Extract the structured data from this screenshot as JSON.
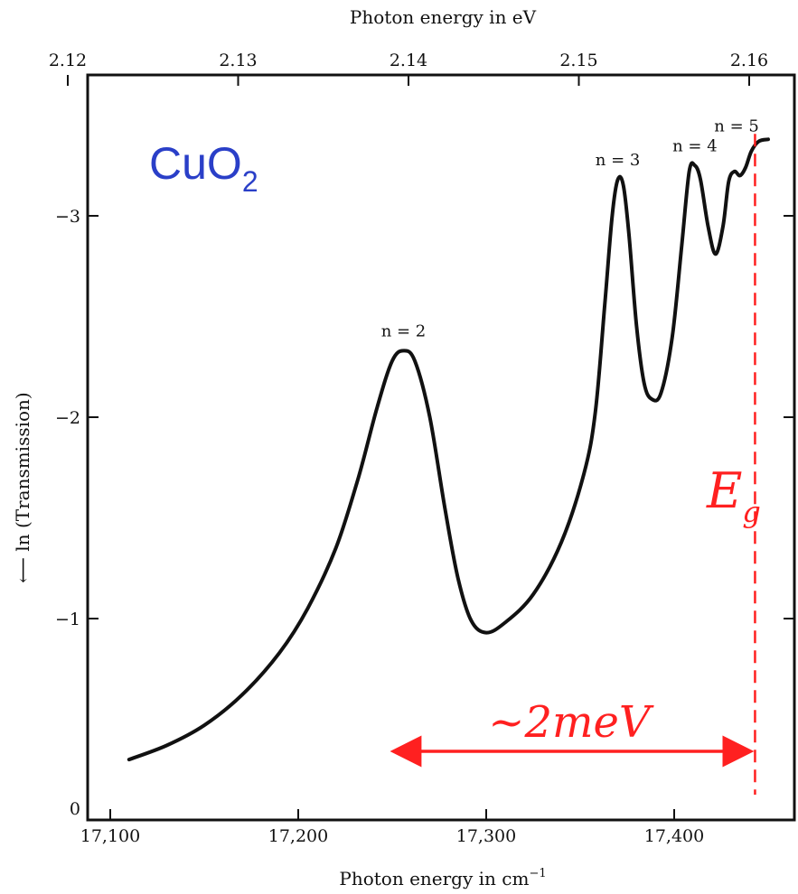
{
  "chart_data": {
    "type": "line",
    "xlabel": "Photon energy in cm",
    "xlabel_sup": "−1",
    "x2label": "Photon energy in eV",
    "ylabel": "⟵ ln (Transmission)",
    "xlim": [
      17100,
      17450
    ],
    "ylim": [
      0,
      3.7
    ],
    "x_ticks": [
      {
        "value": 17100,
        "label": "17,100"
      },
      {
        "value": 17200,
        "label": "17,200"
      },
      {
        "value": 17300,
        "label": "17,300"
      },
      {
        "value": 17400,
        "label": "17,400"
      }
    ],
    "x2_ticks": [
      {
        "value": 2.12,
        "label": "2.12"
      },
      {
        "value": 2.13,
        "label": "2.13"
      },
      {
        "value": 2.14,
        "label": "2.14"
      },
      {
        "value": 2.15,
        "label": "2.15"
      },
      {
        "value": 2.16,
        "label": "2.16"
      }
    ],
    "y_ticks": [
      {
        "value": 0,
        "label": "0"
      },
      {
        "value": 1,
        "label": "−1"
      },
      {
        "value": 2,
        "label": "−2"
      },
      {
        "value": 3,
        "label": "−3"
      }
    ],
    "series": [
      {
        "points": [
          [
            17110,
            0.3
          ],
          [
            17130,
            0.37
          ],
          [
            17150,
            0.47
          ],
          [
            17170,
            0.62
          ],
          [
            17190,
            0.83
          ],
          [
            17205,
            1.05
          ],
          [
            17220,
            1.35
          ],
          [
            17232,
            1.7
          ],
          [
            17242,
            2.05
          ],
          [
            17250,
            2.28
          ],
          [
            17256,
            2.33
          ],
          [
            17262,
            2.28
          ],
          [
            17270,
            2.0
          ],
          [
            17278,
            1.55
          ],
          [
            17285,
            1.2
          ],
          [
            17292,
            0.99
          ],
          [
            17300,
            0.93
          ],
          [
            17310,
            0.98
          ],
          [
            17325,
            1.12
          ],
          [
            17340,
            1.38
          ],
          [
            17352,
            1.72
          ],
          [
            17358,
            2.02
          ],
          [
            17363,
            2.55
          ],
          [
            17367,
            3.0
          ],
          [
            17370,
            3.18
          ],
          [
            17373,
            3.15
          ],
          [
            17376,
            2.9
          ],
          [
            17380,
            2.45
          ],
          [
            17384,
            2.17
          ],
          [
            17388,
            2.09
          ],
          [
            17393,
            2.12
          ],
          [
            17399,
            2.4
          ],
          [
            17404,
            2.85
          ],
          [
            17408,
            3.22
          ],
          [
            17411,
            3.25
          ],
          [
            17414,
            3.18
          ],
          [
            17418,
            2.95
          ],
          [
            17422,
            2.81
          ],
          [
            17426,
            2.95
          ],
          [
            17429,
            3.17
          ],
          [
            17432,
            3.22
          ],
          [
            17435,
            3.2
          ],
          [
            17438,
            3.24
          ],
          [
            17441,
            3.32
          ],
          [
            17445,
            3.37
          ],
          [
            17450,
            3.38
          ]
        ]
      }
    ],
    "annotations": {
      "material": "CuO",
      "material_sub": "2",
      "peaks": [
        {
          "label": "n = 2",
          "x": 17256,
          "y": 2.33
        },
        {
          "label": "n = 3",
          "x": 17370,
          "y": 3.18
        },
        {
          "label": "n = 4",
          "x": 17411,
          "y": 3.25
        },
        {
          "label": "n = 5",
          "x": 17438,
          "y": 3.24
        }
      ],
      "gap_symbol": "E",
      "gap_symbol_sub": "g",
      "gap_x": 17443,
      "gap_arrow_from": 17255,
      "gap_label": "~2meV",
      "gap_color": "#ff2020",
      "material_color": "#2a3fc8"
    }
  }
}
